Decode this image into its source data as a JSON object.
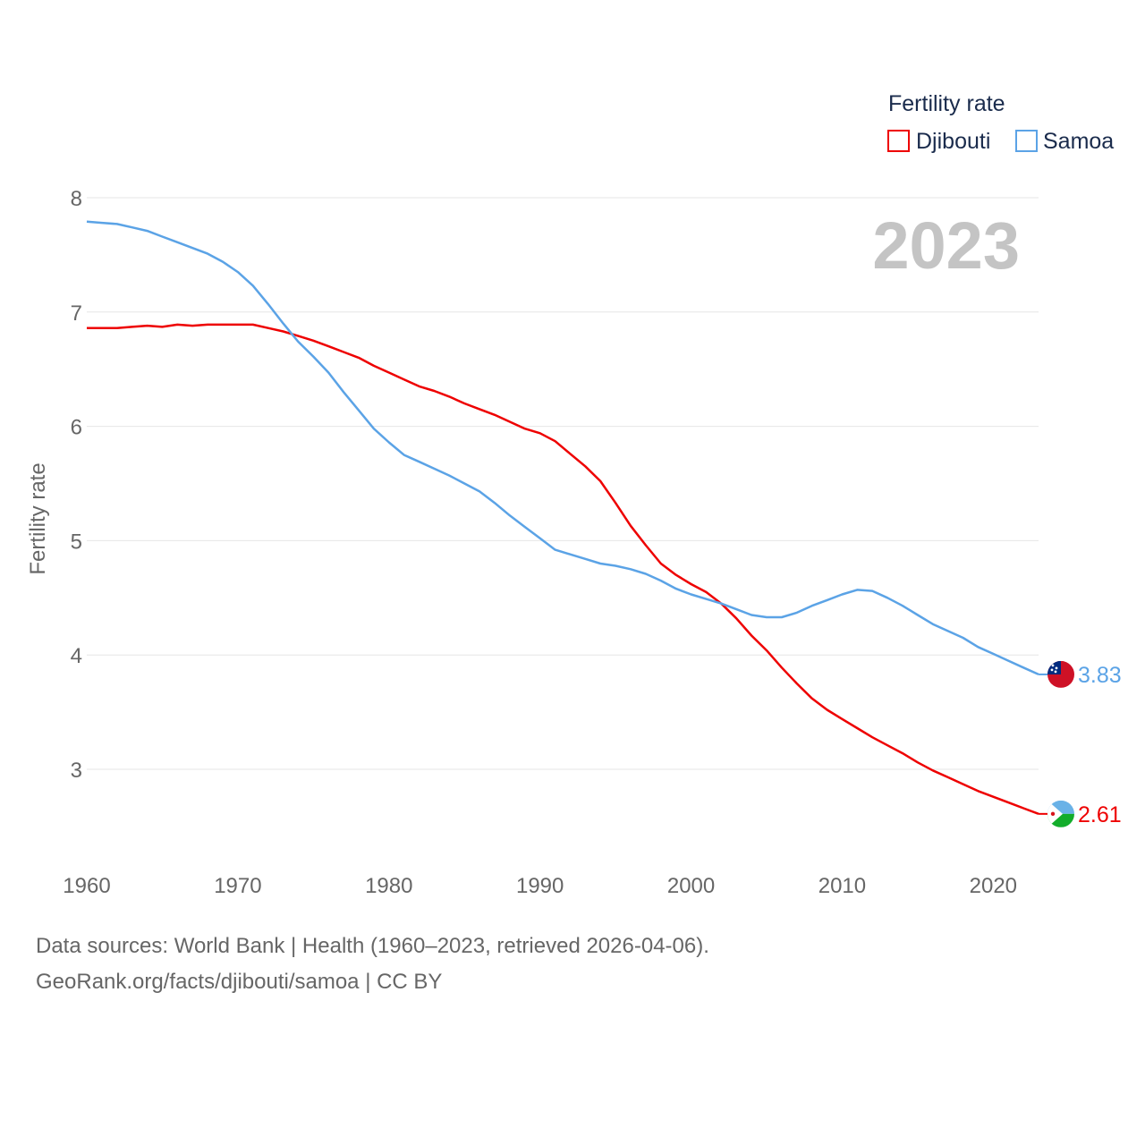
{
  "chart_data": {
    "type": "line",
    "title": "Fertility rate",
    "year_label": "2023",
    "xlabel": "",
    "ylabel": "Fertility rate",
    "xlim": [
      1960,
      2023
    ],
    "ylim": [
      2.35,
      8
    ],
    "x_ticks": [
      1960,
      1970,
      1980,
      1990,
      2000,
      2010,
      2020
    ],
    "y_ticks": [
      3,
      4,
      5,
      6,
      7,
      8
    ],
    "grid": true,
    "legend": {
      "title": "Fertility rate",
      "position": "top-right"
    },
    "x": [
      1960,
      1961,
      1962,
      1963,
      1964,
      1965,
      1966,
      1967,
      1968,
      1969,
      1970,
      1971,
      1972,
      1973,
      1974,
      1975,
      1976,
      1977,
      1978,
      1979,
      1980,
      1981,
      1982,
      1983,
      1984,
      1985,
      1986,
      1987,
      1988,
      1989,
      1990,
      1991,
      1992,
      1993,
      1994,
      1995,
      1996,
      1997,
      1998,
      1999,
      2000,
      2001,
      2002,
      2003,
      2004,
      2005,
      2006,
      2007,
      2008,
      2009,
      2010,
      2011,
      2012,
      2013,
      2014,
      2015,
      2016,
      2017,
      2018,
      2019,
      2020,
      2021,
      2022,
      2023
    ],
    "series": [
      {
        "name": "Djibouti",
        "color": "#ee0000",
        "end_value_label": "2.61",
        "flag": "djibouti-flag",
        "values": [
          6.86,
          6.86,
          6.86,
          6.87,
          6.88,
          6.87,
          6.89,
          6.88,
          6.89,
          6.89,
          6.89,
          6.89,
          6.86,
          6.83,
          6.79,
          6.75,
          6.7,
          6.65,
          6.6,
          6.53,
          6.47,
          6.41,
          6.35,
          6.31,
          6.26,
          6.2,
          6.15,
          6.1,
          6.04,
          5.98,
          5.94,
          5.87,
          5.76,
          5.65,
          5.52,
          5.33,
          5.13,
          4.96,
          4.8,
          4.7,
          4.62,
          4.55,
          4.45,
          4.32,
          4.17,
          4.04,
          3.89,
          3.75,
          3.62,
          3.52,
          3.44,
          3.36,
          3.28,
          3.21,
          3.14,
          3.06,
          2.99,
          2.93,
          2.87,
          2.81,
          2.76,
          2.71,
          2.66,
          2.61
        ]
      },
      {
        "name": "Samoa",
        "color": "#5ba3e6",
        "end_value_label": "3.83",
        "flag": "samoa-flag",
        "values": [
          7.79,
          7.78,
          7.77,
          7.74,
          7.71,
          7.66,
          7.61,
          7.56,
          7.51,
          7.44,
          7.35,
          7.23,
          7.07,
          6.9,
          6.74,
          6.61,
          6.47,
          6.3,
          6.14,
          5.98,
          5.86,
          5.75,
          5.69,
          5.63,
          5.57,
          5.5,
          5.43,
          5.33,
          5.22,
          5.12,
          5.02,
          4.92,
          4.88,
          4.84,
          4.8,
          4.78,
          4.75,
          4.71,
          4.65,
          4.58,
          4.53,
          4.49,
          4.45,
          4.4,
          4.35,
          4.33,
          4.33,
          4.37,
          4.43,
          4.48,
          4.53,
          4.57,
          4.56,
          4.5,
          4.43,
          4.35,
          4.27,
          4.21,
          4.15,
          4.07,
          4.01,
          3.95,
          3.89,
          3.83
        ]
      }
    ]
  },
  "footer": {
    "line1": "Data sources: World Bank | Health (1960–2023, retrieved 2026-04-06).",
    "line2": "GeoRank.org/facts/djibouti/samoa | CC BY"
  }
}
